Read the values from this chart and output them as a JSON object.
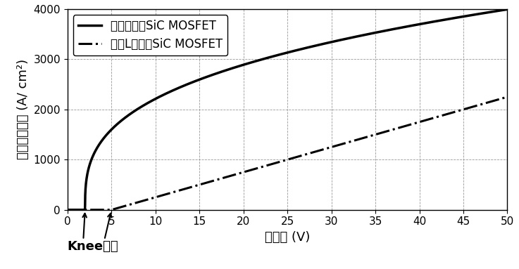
{
  "xlabel": "漏电压 (V)",
  "ylabel": "漏极电流密度 (A/ cm²)",
  "xlim": [
    0,
    50
  ],
  "ylim": [
    0,
    4000
  ],
  "xticks": [
    0,
    5,
    10,
    15,
    20,
    25,
    30,
    35,
    40,
    45,
    50
  ],
  "yticks": [
    0,
    1000,
    2000,
    3000,
    4000
  ],
  "line1_label": "本发明实例SiC MOSFET",
  "line1_style": "-",
  "line1_color": "#000000",
  "line1_lw": 2.5,
  "line1_knee": 2.0,
  "line1_A": 850,
  "line1_n": 0.55,
  "line2_label": "传统L型基区SiC MOSFET",
  "line2_style": "-.",
  "line2_color": "#000000",
  "line2_lw": 2.2,
  "line2_knee": 5.0,
  "line2_A": 50.0,
  "line2_n": 1.0,
  "knee_label": "Knee电压",
  "knee_x1": 2.0,
  "knee_x2": 5.0,
  "background_color": "#ffffff",
  "grid_color": "#999999",
  "legend_fontsize": 12,
  "axis_fontsize": 13,
  "tick_fontsize": 11
}
